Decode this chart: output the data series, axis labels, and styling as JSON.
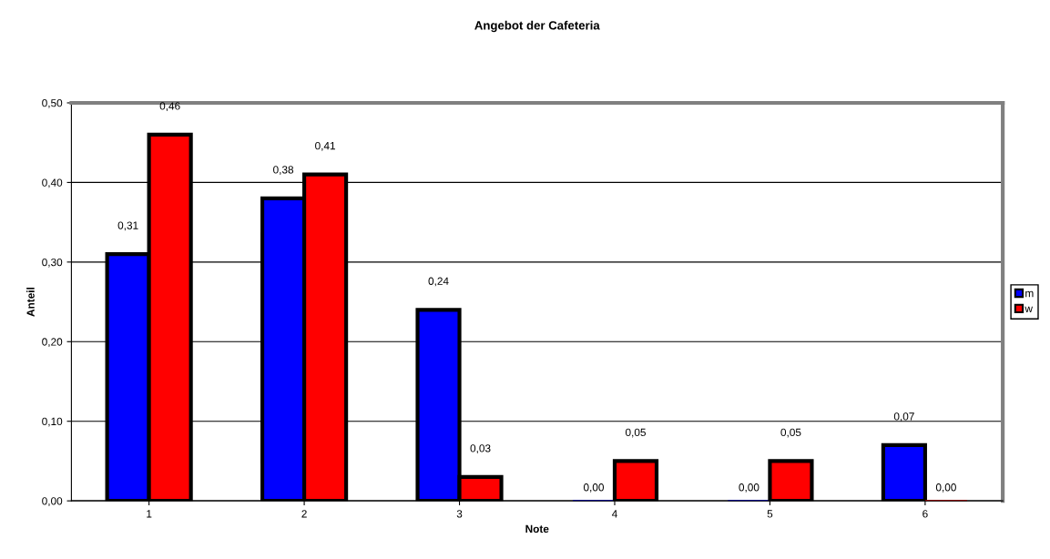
{
  "chart_data": {
    "type": "bar",
    "title": "Angebot der Cafeteria",
    "xlabel": "Note",
    "ylabel": "Anteil",
    "categories": [
      "1",
      "2",
      "3",
      "4",
      "5",
      "6"
    ],
    "series": [
      {
        "name": "m",
        "color": "#0000ff",
        "values": [
          0.31,
          0.38,
          0.24,
          0.0,
          0.0,
          0.07
        ],
        "value_labels": [
          "0,31",
          "0,38",
          "0,24",
          "0,00",
          "0,00",
          "0,07"
        ]
      },
      {
        "name": "w",
        "color": "#ff0000",
        "values": [
          0.46,
          0.41,
          0.03,
          0.05,
          0.05,
          0.0
        ],
        "value_labels": [
          "0,46",
          "0,41",
          "0,03",
          "0,05",
          "0,05",
          "0,00"
        ]
      }
    ],
    "ylim": [
      0,
      0.5
    ],
    "yticks": [
      {
        "value": 0,
        "label": "0,00"
      },
      {
        "value": 0.1,
        "label": "0,10"
      },
      {
        "value": 0.2,
        "label": "0,20"
      },
      {
        "value": 0.3,
        "label": "0,30"
      },
      {
        "value": 0.4,
        "label": "0,40"
      },
      {
        "value": 0.5,
        "label": "0,50"
      }
    ],
    "grid": "y",
    "legend": "right"
  }
}
